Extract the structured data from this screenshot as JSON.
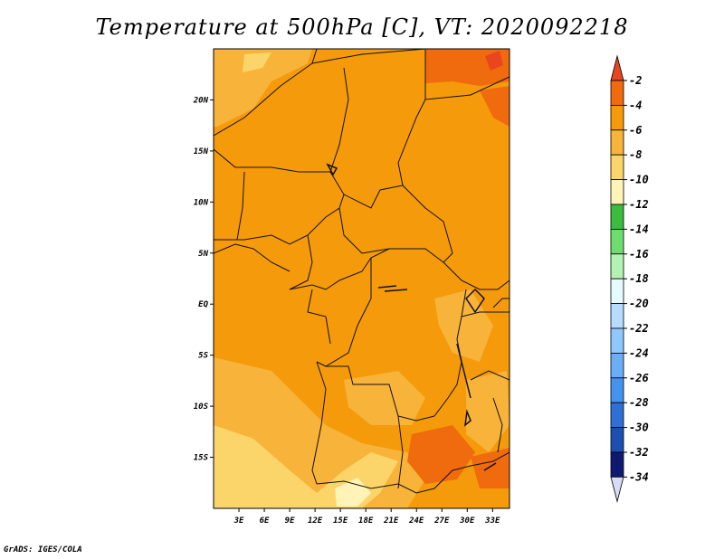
{
  "title": "Temperature at 500hPa [C], VT: 2020092218",
  "credit": "GrADS: IGES/COLA",
  "map": {
    "lon_range": [
      0,
      35
    ],
    "lat_range": [
      -20,
      25
    ],
    "lon_ticks": [
      "3E",
      "6E",
      "9E",
      "12E",
      "15E",
      "18E",
      "21E",
      "24E",
      "27E",
      "30E",
      "33E"
    ],
    "lat_ticks": [
      "20N",
      "15N",
      "10N",
      "5N",
      "EQ",
      "5S",
      "10S",
      "15S"
    ]
  },
  "colorbar": {
    "labels": [
      "-2",
      "-4",
      "-6",
      "-8",
      "-10",
      "-12",
      "-14",
      "-16",
      "-18",
      "-20",
      "-22",
      "-24",
      "-26",
      "-28",
      "-30",
      "-32",
      "-34"
    ],
    "colors": [
      "#e8461f",
      "#f06a0e",
      "#f59a0a",
      "#f8b33a",
      "#fcd56a",
      "#fff3b8",
      "#3cbb3c",
      "#6fdc6f",
      "#b4f2b4",
      "#e6fbff",
      "#b5dcff",
      "#8fc8ff",
      "#6aaef8",
      "#4593ee",
      "#2e70d4",
      "#1c4fb0",
      "#0d1a70",
      "#d9dbf5"
    ]
  },
  "chart_data": {
    "type": "heatmap",
    "title": "Temperature at 500hPa [C], VT: 2020092218",
    "xlabel": "",
    "ylabel": "",
    "xlim": [
      0,
      35
    ],
    "ylim": [
      -20,
      25
    ],
    "units": "C",
    "levels": [
      -34,
      -32,
      -30,
      -28,
      -26,
      -24,
      -22,
      -20,
      -18,
      -16,
      -14,
      -12,
      -10,
      -8,
      -6,
      -4,
      -2
    ],
    "dominant_range": [
      -6,
      -4
    ]
  }
}
